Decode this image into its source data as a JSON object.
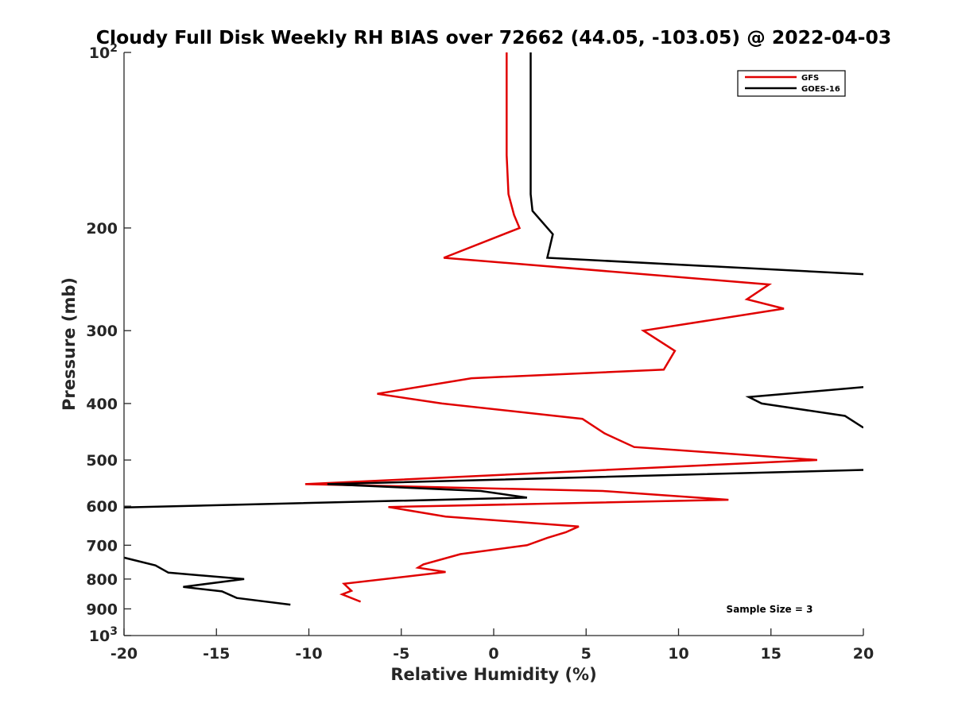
{
  "chart_data": {
    "type": "line",
    "title": "Cloudy Full Disk Weekly RH BIAS over 72662 (44.05, -103.05) @ 2022-04-03",
    "xlabel": "Relative Humidity (%)",
    "ylabel": "Pressure (mb)",
    "xlim": [
      -20,
      20
    ],
    "ylim": [
      100,
      1000
    ],
    "y_scale": "log",
    "y_reversed": true,
    "grid": false,
    "legend_position": "top-right",
    "annotation": "Sample Size = 3",
    "x_ticks": [
      -20,
      -15,
      -10,
      -5,
      0,
      5,
      10,
      15,
      20
    ],
    "x_tick_labels": [
      "-20",
      "-15",
      "-10",
      "-5",
      "0",
      "5",
      "10",
      "15",
      "20"
    ],
    "y_ticks": [
      {
        "value": 100,
        "base": "10",
        "exp": "2"
      },
      {
        "value": 200,
        "base": "200",
        "exp": ""
      },
      {
        "value": 300,
        "base": "300",
        "exp": ""
      },
      {
        "value": 400,
        "base": "400",
        "exp": ""
      },
      {
        "value": 500,
        "base": "500",
        "exp": ""
      },
      {
        "value": 600,
        "base": "600",
        "exp": ""
      },
      {
        "value": 700,
        "base": "700",
        "exp": ""
      },
      {
        "value": 800,
        "base": "800",
        "exp": ""
      },
      {
        "value": 900,
        "base": "900",
        "exp": ""
      },
      {
        "value": 1000,
        "base": "10",
        "exp": "3"
      }
    ],
    "series": [
      {
        "name": "GFS",
        "color": "#e00000",
        "points": [
          [
            0.7,
            100
          ],
          [
            0.7,
            125
          ],
          [
            0.7,
            150
          ],
          [
            0.8,
            175
          ],
          [
            1.1,
            190
          ],
          [
            1.4,
            200
          ],
          [
            -2.7,
            225
          ],
          [
            14.9,
            250
          ],
          [
            13.7,
            265
          ],
          [
            15.7,
            275
          ],
          [
            8.1,
            300
          ],
          [
            9.8,
            325
          ],
          [
            9.2,
            350
          ],
          [
            -1.2,
            362
          ],
          [
            -6.3,
            385
          ],
          [
            -2.8,
            400
          ],
          [
            4.8,
            425
          ],
          [
            6.0,
            450
          ],
          [
            7.6,
            475
          ],
          [
            17.5,
            500
          ],
          [
            -10.2,
            550
          ],
          [
            5.9,
            565
          ],
          [
            12.7,
            585
          ],
          [
            -5.7,
            602
          ],
          [
            -2.6,
            625
          ],
          [
            4.6,
            650
          ],
          [
            3.9,
            665
          ],
          [
            2.9,
            680
          ],
          [
            1.8,
            700
          ],
          [
            -1.8,
            725
          ],
          [
            -3.8,
            755
          ],
          [
            -4.1,
            765
          ],
          [
            -2.6,
            778
          ],
          [
            -8.1,
            815
          ],
          [
            -7.7,
            838
          ],
          [
            -8.2,
            850
          ],
          [
            -7.2,
            875
          ]
        ]
      },
      {
        "name": "GOES-16",
        "color": "#000000",
        "points": [
          [
            2.0,
            100
          ],
          [
            2.0,
            125
          ],
          [
            2.0,
            150
          ],
          [
            2.0,
            175
          ],
          [
            2.1,
            187
          ],
          [
            3.2,
            205
          ],
          [
            2.9,
            225
          ],
          [
            20.0,
            240
          ],
          null,
          [
            20.0,
            375
          ],
          [
            13.8,
            390
          ],
          [
            14.5,
            400
          ],
          [
            19.0,
            420
          ],
          [
            20.0,
            440
          ],
          null,
          [
            20.0,
            520
          ],
          [
            -9.0,
            550
          ],
          [
            -0.7,
            565
          ],
          [
            1.8,
            580
          ],
          [
            -20.0,
            603
          ],
          null,
          [
            -20.0,
            735
          ],
          [
            -18.3,
            758
          ],
          [
            -17.6,
            780
          ],
          [
            -13.5,
            800
          ],
          [
            -16.8,
            825
          ],
          [
            -14.7,
            840
          ],
          [
            -13.9,
            862
          ],
          [
            -11.0,
            885
          ]
        ]
      }
    ]
  }
}
